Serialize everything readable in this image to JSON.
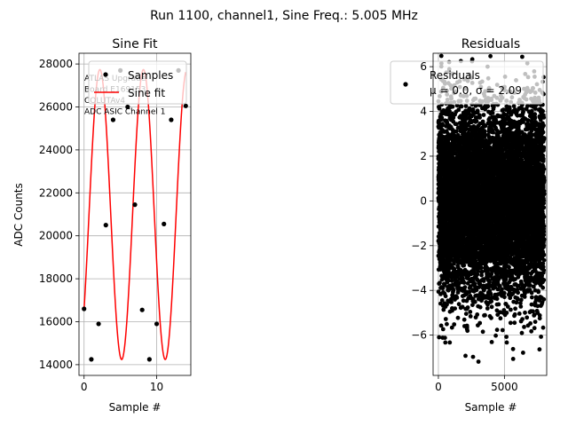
{
  "figure": {
    "suptitle": "Run 1100, channel1, Sine Freq.: 5.005 MHz"
  },
  "chart_data": [
    {
      "type": "scatter",
      "title": "Sine Fit",
      "xlabel": "Sample #",
      "ylabel": "ADC Counts",
      "xlim": [
        -0.7,
        14.7
      ],
      "ylim": [
        13500,
        28500
      ],
      "xticks": [
        0,
        10
      ],
      "yticks": [
        14000,
        16000,
        18000,
        20000,
        22000,
        24000,
        26000,
        28000
      ],
      "grid": true,
      "legend_placement": "upper right",
      "legend": [
        "Samples",
        "Sine fit"
      ],
      "annotation": [
        "ATLAS Upgrade",
        " Board E169153",
        "COLUTAv4",
        "ADC ASIC Channel 1"
      ],
      "series": [
        {
          "name": "Samples",
          "kind": "points",
          "color": "#000000",
          "x": [
            0,
            1,
            2,
            3,
            4,
            5,
            6,
            7,
            8,
            9,
            10,
            11,
            12,
            13,
            14
          ],
          "y": [
            16600,
            14250,
            15900,
            20500,
            25400,
            27700,
            26000,
            21450,
            16550,
            14250,
            15900,
            20550,
            25400,
            27700,
            26050
          ]
        },
        {
          "name": "Sine fit",
          "kind": "line",
          "color": "#ff0000",
          "model": {
            "amplitude": 6750,
            "offset": 20990,
            "period_samples": 6.0,
            "phase_rad": -0.71
          }
        }
      ]
    },
    {
      "type": "scatter",
      "title": "Residuals",
      "xlabel": "Sample #",
      "ylabel": "",
      "xlim": [
        -400,
        8200
      ],
      "ylim": [
        -7.8,
        6.6
      ],
      "xticks": [
        0,
        5000
      ],
      "yticks": [
        -6,
        -4,
        -2,
        0,
        2,
        4,
        6
      ],
      "grid": true,
      "legend_placement": "upper right",
      "legend": [
        "Residuals"
      ],
      "legend_stats": "μ = 0.0, σ = 2.09",
      "series": [
        {
          "name": "Residuals",
          "kind": "points",
          "color": "#000000",
          "n_points": 8000,
          "mean": 0.0,
          "std": 2.09,
          "x_range": [
            0,
            8000
          ],
          "y_range": [
            -7.2,
            6.5
          ]
        }
      ]
    }
  ]
}
